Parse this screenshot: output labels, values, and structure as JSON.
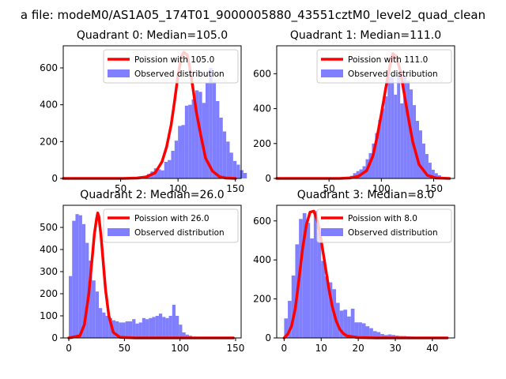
{
  "figure": {
    "suptitle": "a file: modeM0/AS1A05_174T01_9000005880_43551cztM0_level2_quad_clean"
  },
  "legend_labels": {
    "observed": "Observed distribution"
  },
  "colors": {
    "poisson_line": "#ff0000",
    "histogram": "#7f7fff"
  },
  "chart_data": [
    {
      "type": "bar",
      "title": "Quadrant 0: Median=105.0",
      "poisson_label": "Poission with 105.0",
      "xlim": [
        0,
        155
      ],
      "ylim": [
        0,
        720
      ],
      "xticks": [
        50,
        100,
        150
      ],
      "yticks": [
        0,
        200,
        400,
        600
      ],
      "hist": {
        "bin_start": 52,
        "bin_width": 3,
        "values": [
          0,
          0,
          0,
          2,
          4,
          8,
          14,
          24,
          38,
          55,
          50,
          44,
          90,
          100,
          150,
          205,
          285,
          290,
          395,
          400,
          430,
          478,
          470,
          410,
          520,
          600,
          525,
          420,
          330,
          255,
          200,
          140,
          95,
          75,
          45,
          30
        ]
      },
      "poisson": {
        "x": [
          0,
          52,
          64,
          72,
          80,
          86,
          90,
          94,
          97,
          100,
          103,
          105,
          108,
          110,
          113,
          116,
          120,
          124,
          130,
          136,
          142,
          150
        ],
        "y": [
          0,
          0,
          2,
          8,
          30,
          90,
          170,
          290,
          420,
          560,
          660,
          685,
          670,
          610,
          490,
          360,
          230,
          110,
          40,
          10,
          2,
          0
        ]
      }
    },
    {
      "type": "bar",
      "title": "Quadrant 1: Median=111.0",
      "poisson_label": "Poission with 111.0",
      "xlim": [
        0,
        170
      ],
      "ylim": [
        0,
        760
      ],
      "xticks": [
        50,
        100,
        150
      ],
      "yticks": [
        0,
        200,
        400,
        600
      ],
      "hist": {
        "bin_start": 58,
        "bin_width": 3,
        "values": [
          2,
          4,
          6,
          10,
          15,
          30,
          42,
          52,
          70,
          110,
          145,
          200,
          260,
          335,
          400,
          470,
          580,
          590,
          480,
          595,
          430,
          590,
          560,
          510,
          420,
          330,
          275,
          200,
          140,
          90,
          50,
          30,
          18,
          8
        ]
      },
      "poisson": {
        "x": [
          0,
          60,
          70,
          78,
          86,
          92,
          96,
          100,
          104,
          108,
          111,
          114,
          118,
          122,
          126,
          130,
          136,
          144,
          152,
          165
        ],
        "y": [
          0,
          0,
          3,
          12,
          45,
          130,
          240,
          370,
          510,
          640,
          715,
          700,
          620,
          480,
          340,
          210,
          80,
          18,
          3,
          0
        ]
      }
    },
    {
      "type": "bar",
      "title": "Quadrant 2: Median=26.0",
      "poisson_label": "Poission with 26.0",
      "xlim": [
        -5,
        155
      ],
      "ylim": [
        0,
        600
      ],
      "xticks": [
        0,
        50,
        100,
        150
      ],
      "yticks": [
        0,
        100,
        200,
        300,
        400,
        500
      ],
      "hist": {
        "bin_start": 0,
        "bin_width": 3,
        "values": [
          280,
          530,
          560,
          555,
          515,
          430,
          350,
          260,
          210,
          135,
          115,
          100,
          90,
          80,
          75,
          70,
          70,
          75,
          75,
          85,
          65,
          70,
          90,
          85,
          90,
          95,
          100,
          110,
          95,
          90,
          100,
          150,
          100,
          60,
          25,
          15,
          10,
          5,
          4,
          3,
          2,
          1,
          1,
          0,
          0,
          0,
          0,
          0,
          0,
          0
        ]
      },
      "poisson": {
        "x": [
          0,
          10,
          14,
          18,
          21,
          23,
          25,
          26,
          27,
          29,
          31,
          33,
          36,
          40,
          46,
          60,
          100,
          148
        ],
        "y": [
          0,
          10,
          60,
          200,
          360,
          470,
          540,
          565,
          550,
          460,
          340,
          220,
          100,
          25,
          3,
          0,
          0,
          0
        ]
      }
    },
    {
      "type": "bar",
      "title": "Quadrant 3: Median=8.0",
      "poisson_label": "Poission with 8.0",
      "xlim": [
        -2,
        46
      ],
      "ylim": [
        0,
        680
      ],
      "xticks": [
        0,
        10,
        20,
        30,
        40
      ],
      "yticks": [
        0,
        200,
        400,
        600
      ],
      "hist": {
        "bin_start": 0,
        "bin_width": 1,
        "values": [
          100,
          190,
          320,
          480,
          610,
          640,
          590,
          510,
          650,
          540,
          395,
          315,
          285,
          250,
          180,
          140,
          145,
          110,
          150,
          80,
          80,
          75,
          60,
          50,
          35,
          30,
          20,
          15,
          18,
          15,
          12,
          10,
          10,
          8,
          7,
          6,
          5,
          5,
          4,
          4,
          3,
          3,
          2,
          2
        ]
      },
      "poisson": {
        "x": [
          0,
          1,
          2,
          3,
          4,
          5,
          6,
          7,
          8,
          9,
          10,
          11,
          12,
          13,
          14,
          15,
          16,
          17,
          20,
          25,
          30,
          44
        ],
        "y": [
          0,
          20,
          60,
          150,
          300,
          460,
          580,
          645,
          650,
          600,
          500,
          380,
          260,
          160,
          90,
          45,
          22,
          10,
          2,
          0,
          0,
          0
        ]
      }
    }
  ]
}
